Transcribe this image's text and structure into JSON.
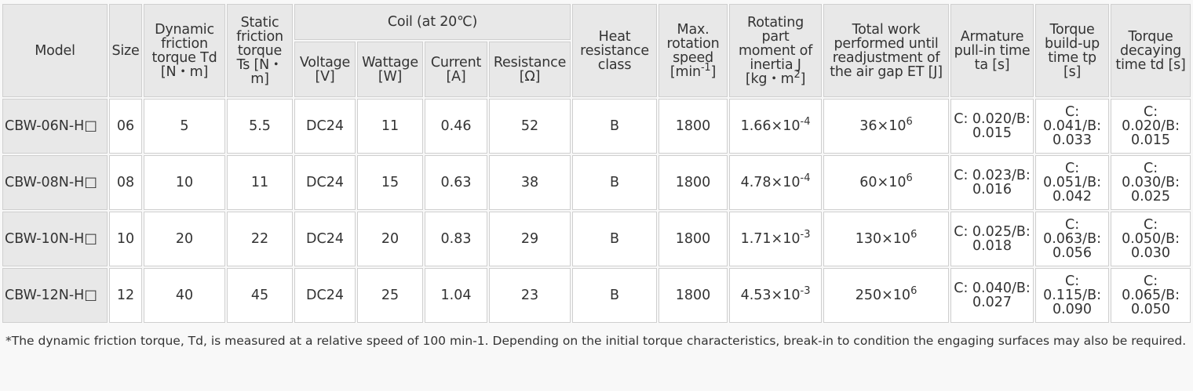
{
  "table": {
    "header": [
      [
        "Model"
      ],
      [
        "Size"
      ],
      [
        "Dynamic friction torque Td [N・m]"
      ],
      [
        "Static friction torque Ts [N・m]"
      ],
      [
        "Coil (at 20℃)"
      ],
      [
        "Heat resistance class"
      ],
      [
        "Max. rotation speed [min",
        "-1",
        "]"
      ],
      [
        "Rotating part moment of inertia J [kg・m",
        "2",
        "]"
      ],
      [
        "Total work performed until readjustment of the air gap ET [J]"
      ],
      [
        "Armature pull-in time ta [s]"
      ],
      [
        "Torque build-up time tp [s]"
      ],
      [
        "Torque decaying time td [s]"
      ]
    ],
    "subheader": [
      [
        "Voltage [V]"
      ],
      [
        "Wattage [W]"
      ],
      [
        "Current [A]"
      ],
      [
        "Resistance [Ω]"
      ]
    ],
    "rows": [
      [
        "CBW-06N-H□",
        "06",
        "5",
        "5.5",
        "DC24",
        "11",
        "0.46",
        "52",
        "B",
        "1800",
        [
          "1.66×10",
          "-4"
        ],
        [
          "36×10",
          "6"
        ],
        "C: 0.020/B: 0.015",
        "C: 0.041/B: 0.033",
        "C: 0.020/B: 0.015"
      ],
      [
        "CBW-08N-H□",
        "08",
        "10",
        "11",
        "DC24",
        "15",
        "0.63",
        "38",
        "B",
        "1800",
        [
          "4.78×10",
          "-4"
        ],
        [
          "60×10",
          "6"
        ],
        "C: 0.023/B: 0.016",
        "C: 0.051/B: 0.042",
        "C: 0.030/B: 0.025"
      ],
      [
        "CBW-10N-H□",
        "10",
        "20",
        "22",
        "DC24",
        "20",
        "0.83",
        "29",
        "B",
        "1800",
        [
          "1.71×10",
          "-3"
        ],
        [
          "130×10",
          "6"
        ],
        "C: 0.025/B: 0.018",
        "C: 0.063/B: 0.056",
        "C: 0.050/B: 0.030"
      ],
      [
        "CBW-12N-H□",
        "12",
        "40",
        "45",
        "DC24",
        "25",
        "1.04",
        "23",
        "B",
        "1800",
        [
          "4.53×10",
          "-3"
        ],
        [
          "250×10",
          "6"
        ],
        "C: 0.040/B: 0.027",
        "C: 0.115/B: 0.090",
        "C: 0.065/B: 0.050"
      ]
    ]
  },
  "footnote": "*The dynamic friction torque, Td, is measured at a relative speed of 100 min-1. Depending on the initial torque characteristics, break-in to condition the engaging surfaces may also be required."
}
